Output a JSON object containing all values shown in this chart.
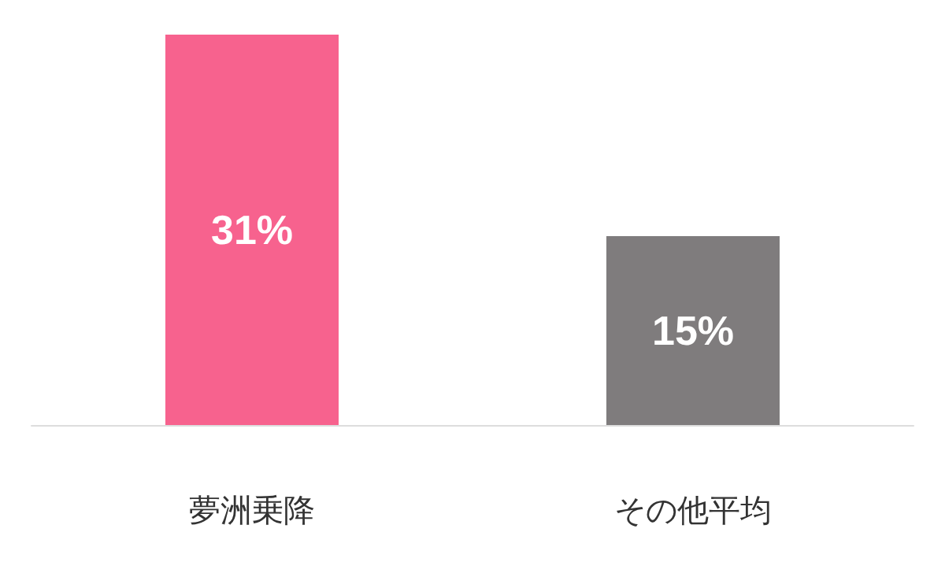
{
  "chart_data": {
    "type": "bar",
    "categories": [
      "夢洲乗降",
      "その他平均"
    ],
    "values": [
      31,
      15
    ],
    "colors": [
      "#f7628e",
      "#7f7c7d"
    ],
    "value_labels": [
      "31%",
      "15%"
    ]
  }
}
